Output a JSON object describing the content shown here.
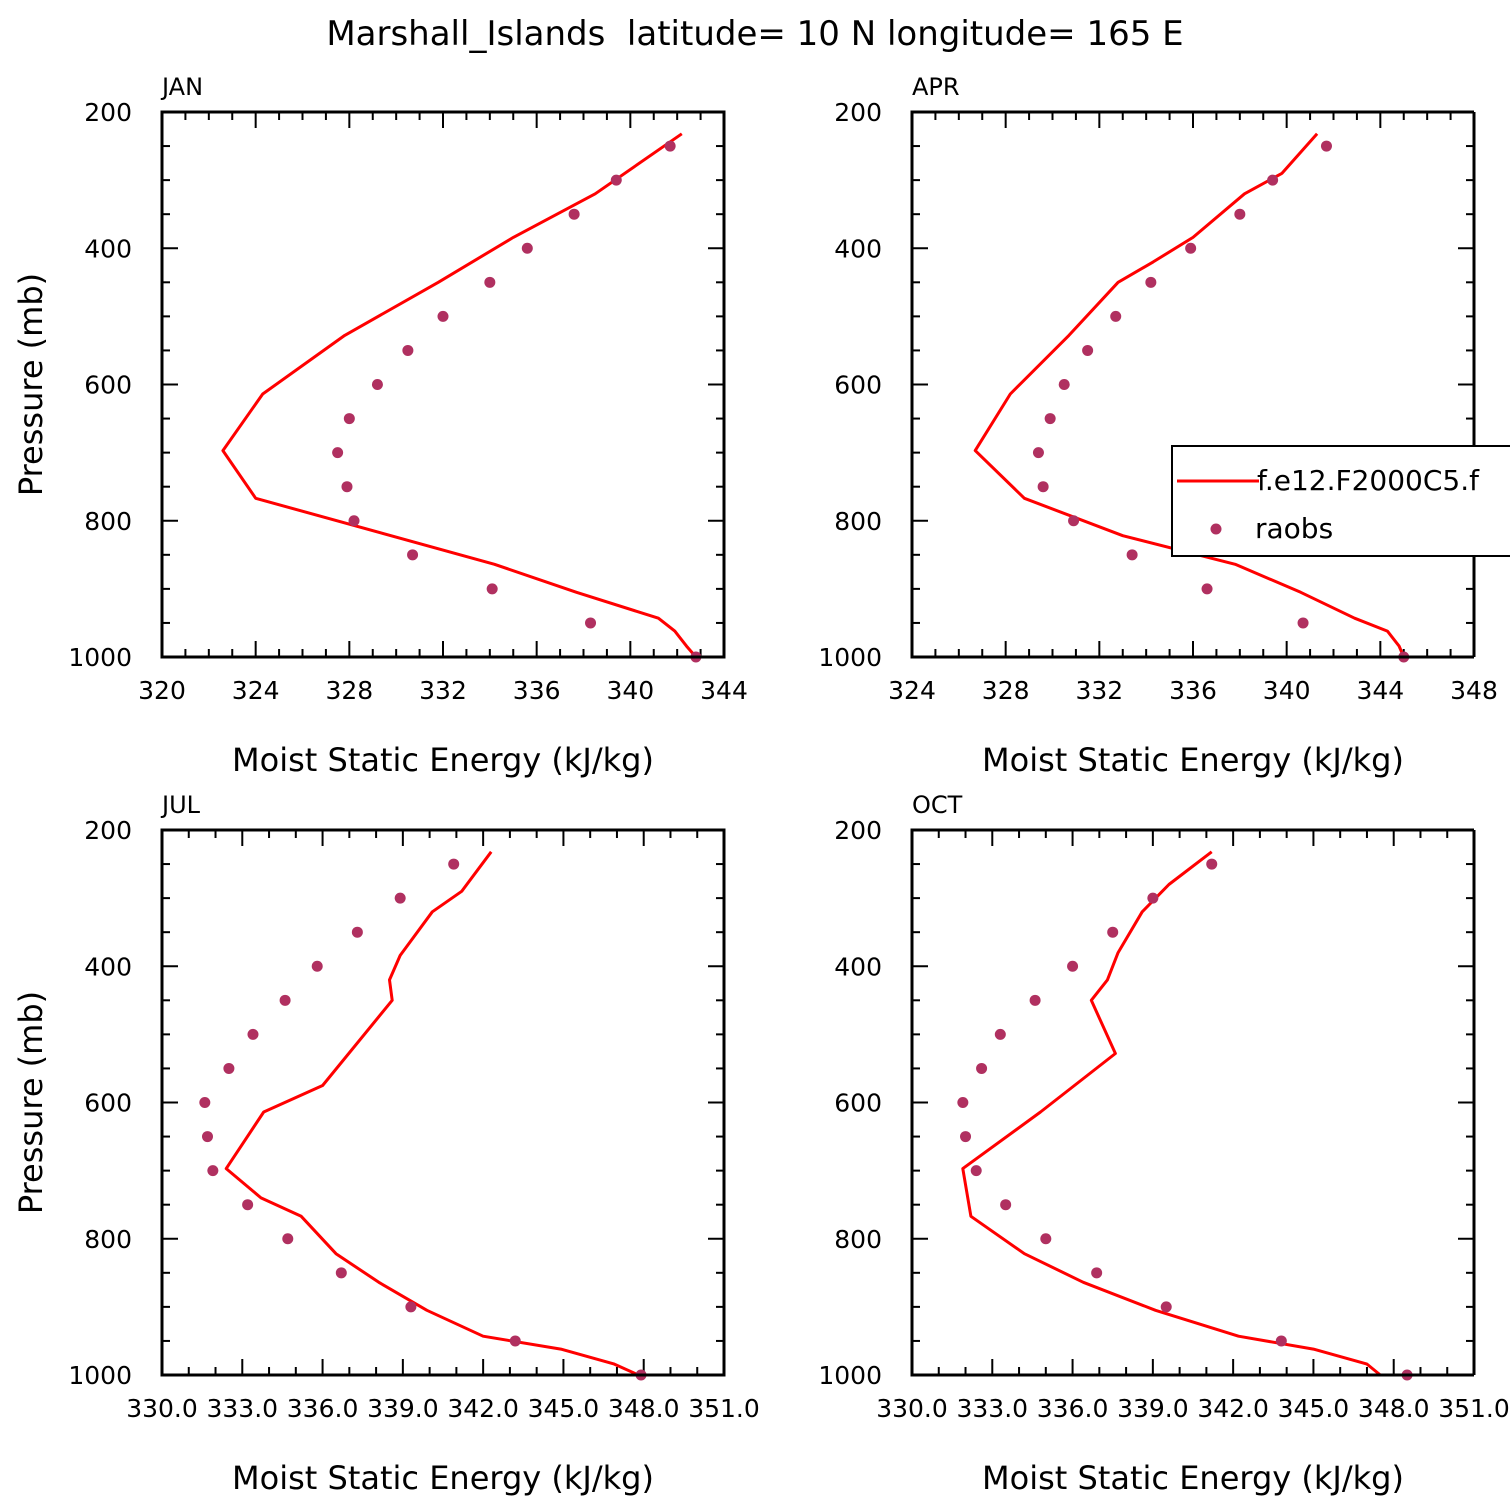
{
  "figure": {
    "title": "Marshall_Islands  latitude= 10 N longitude= 165 E"
  },
  "colors": {
    "model": "#ff0000",
    "obs": "#b03060",
    "axis": "#000000"
  },
  "legend": {
    "model_label": "f.e12.F2000C5.f",
    "obs_label": "raobs"
  },
  "chart_data": [
    {
      "type": "line",
      "panel_label": "JAN",
      "xlabel": "Moist Static Energy (kJ/kg)",
      "ylabel": "Pressure (mb)",
      "xlim": [
        320,
        344
      ],
      "ylim": [
        1000,
        200
      ],
      "xticks": [
        320,
        324,
        328,
        332,
        336,
        340,
        344
      ],
      "xticklabels": [
        "320",
        "324",
        "328",
        "332",
        "336",
        "340",
        "344"
      ],
      "yticks": [
        200,
        400,
        600,
        800,
        1000
      ],
      "yticklabels": [
        "200",
        "400",
        "600",
        "800",
        "1000"
      ],
      "series": [
        {
          "name": "f.e12.F2000C5.f",
          "kind": "line",
          "x": [
            342.2,
            338.5,
            335.0,
            331.8,
            327.8,
            324.3,
            322.6,
            324.0,
            334.2,
            337.7,
            341.2,
            341.9,
            342.4,
            342.8
          ],
          "y": [
            232,
            320,
            384,
            450,
            528,
            614,
            697,
            767,
            864,
            905,
            943,
            962,
            984,
            1000
          ]
        },
        {
          "name": "raobs",
          "kind": "scatter",
          "x": [
            341.7,
            339.4,
            337.6,
            335.6,
            334.0,
            332.0,
            330.5,
            329.2,
            328.0,
            327.5,
            327.9,
            328.2,
            330.7,
            334.1,
            338.3,
            342.8
          ],
          "y": [
            250,
            300,
            350,
            400,
            450,
            500,
            550,
            600,
            650,
            700,
            750,
            800,
            850,
            900,
            950,
            1000
          ]
        }
      ]
    },
    {
      "type": "line",
      "panel_label": "APR",
      "xlabel": "Moist Static Energy (kJ/kg)",
      "ylabel": "",
      "xlim": [
        324,
        348
      ],
      "ylim": [
        1000,
        200
      ],
      "xticks": [
        324,
        328,
        332,
        336,
        340,
        344,
        348
      ],
      "xticklabels": [
        "324",
        "328",
        "332",
        "336",
        "340",
        "344",
        "348"
      ],
      "yticks": [
        200,
        400,
        600,
        800,
        1000
      ],
      "yticklabels": [
        "200",
        "400",
        "600",
        "800",
        "1000"
      ],
      "legend": true,
      "series": [
        {
          "name": "f.e12.F2000C5.f",
          "kind": "line",
          "x": [
            341.3,
            339.8,
            338.2,
            336.0,
            334.3,
            332.8,
            330.7,
            328.2,
            326.7,
            328.8,
            333.0,
            337.8,
            340.6,
            342.9,
            344.3,
            344.8,
            345.0
          ],
          "y": [
            232,
            290,
            320,
            384,
            420,
            450,
            528,
            614,
            697,
            767,
            822,
            864,
            905,
            943,
            962,
            984,
            1000
          ]
        },
        {
          "name": "raobs",
          "kind": "scatter",
          "x": [
            341.7,
            339.4,
            338.0,
            335.9,
            334.2,
            332.7,
            331.5,
            330.5,
            329.9,
            329.4,
            329.6,
            330.9,
            333.4,
            336.6,
            340.7,
            345.0
          ],
          "y": [
            250,
            300,
            350,
            400,
            450,
            500,
            550,
            600,
            650,
            700,
            750,
            800,
            850,
            900,
            950,
            1000
          ]
        }
      ]
    },
    {
      "type": "line",
      "panel_label": "JUL",
      "xlabel": "Moist Static Energy (kJ/kg)",
      "ylabel": "Pressure (mb)",
      "xlim": [
        330.0,
        351.0
      ],
      "ylim": [
        1000,
        200
      ],
      "xticks": [
        330.0,
        333.0,
        336.0,
        339.0,
        342.0,
        345.0,
        348.0,
        351.0
      ],
      "xticklabels": [
        "330.0",
        "333.0",
        "336.0",
        "339.0",
        "342.0",
        "345.0",
        "348.0",
        "351.0"
      ],
      "yticks": [
        200,
        400,
        600,
        800,
        1000
      ],
      "yticklabels": [
        "200",
        "400",
        "600",
        "800",
        "1000"
      ],
      "series": [
        {
          "name": "f.e12.F2000C5.f",
          "kind": "line",
          "x": [
            342.3,
            341.2,
            340.1,
            338.9,
            338.5,
            338.6,
            336.0,
            333.8,
            332.4,
            333.7,
            335.2,
            336.5,
            338.1,
            339.9,
            342.0,
            344.9,
            346.9,
            347.8,
            348.0
          ],
          "y": [
            232,
            290,
            320,
            384,
            420,
            450,
            575,
            614,
            697,
            740,
            767,
            822,
            864,
            905,
            943,
            962,
            984,
            1000,
            1000
          ]
        },
        {
          "name": "raobs",
          "kind": "scatter",
          "x": [
            340.9,
            338.9,
            337.3,
            335.8,
            334.6,
            333.4,
            332.5,
            331.6,
            331.7,
            331.9,
            333.2,
            334.7,
            336.7,
            339.3,
            343.2,
            347.9
          ],
          "y": [
            250,
            300,
            350,
            400,
            450,
            500,
            550,
            600,
            650,
            700,
            750,
            800,
            850,
            900,
            950,
            1000
          ]
        }
      ]
    },
    {
      "type": "line",
      "panel_label": "OCT",
      "xlabel": "Moist Static Energy (kJ/kg)",
      "ylabel": "",
      "xlim": [
        330.0,
        351.0
      ],
      "ylim": [
        1000,
        200
      ],
      "xticks": [
        330.0,
        333.0,
        336.0,
        339.0,
        342.0,
        345.0,
        348.0,
        351.0
      ],
      "xticklabels": [
        "330.0",
        "333.0",
        "336.0",
        "339.0",
        "342.0",
        "345.0",
        "348.0",
        "351.0"
      ],
      "yticks": [
        200,
        400,
        600,
        800,
        1000
      ],
      "yticklabels": [
        "200",
        "400",
        "600",
        "800",
        "1000"
      ],
      "series": [
        {
          "name": "f.e12.F2000C5.f",
          "kind": "line",
          "x": [
            341.2,
            339.6,
            338.6,
            337.7,
            337.3,
            336.7,
            337.6,
            334.8,
            331.9,
            332.2,
            334.2,
            336.4,
            339.1,
            342.2,
            345.0,
            347.0,
            347.5,
            347.6
          ],
          "y": [
            232,
            280,
            320,
            380,
            420,
            450,
            528,
            614,
            697,
            767,
            822,
            864,
            905,
            943,
            962,
            984,
            1000,
            1000
          ]
        },
        {
          "name": "raobs",
          "kind": "scatter",
          "x": [
            341.2,
            339.0,
            337.5,
            336.0,
            334.6,
            333.3,
            332.6,
            331.9,
            332.0,
            332.4,
            333.5,
            335.0,
            336.9,
            339.5,
            343.8,
            348.5
          ],
          "y": [
            250,
            300,
            350,
            400,
            450,
            500,
            550,
            600,
            650,
            700,
            750,
            800,
            850,
            900,
            950,
            1000
          ]
        }
      ]
    }
  ]
}
